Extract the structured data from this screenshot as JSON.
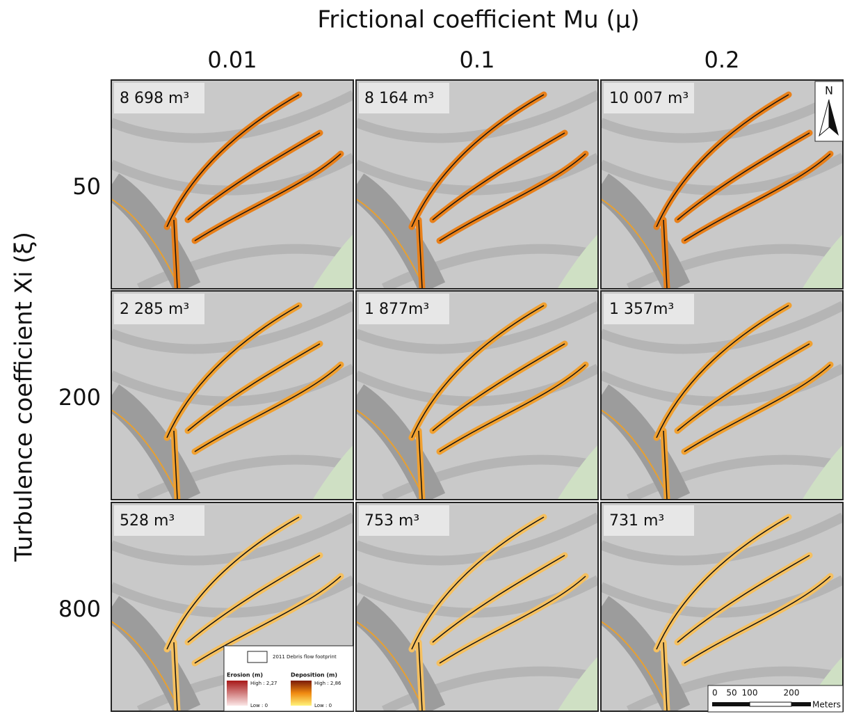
{
  "header": {
    "title": "Frictional coefficient Mu (μ)",
    "columns": [
      "0.01",
      "0.1",
      "0.2"
    ],
    "row_title": "Turbulence coefficient Xi (ξ)",
    "rows": [
      "50",
      "200",
      "800"
    ]
  },
  "panels": [
    [
      "8 698 m³",
      "8 164 m³",
      "10 007 m³"
    ],
    [
      "2 285 m³",
      "1 877m³",
      "1 357m³"
    ],
    [
      "528 m³",
      "753 m³",
      "731 m³"
    ]
  ],
  "legend": {
    "footprint": "2011 Debris flow footprint",
    "erosion": "Erosion (m)",
    "erosion_high": "High : 2,27",
    "erosion_low": "Low : 0",
    "deposition": "Deposition (m)",
    "deposition_high": "High : 2,86",
    "deposition_low": "Low : 0"
  },
  "north_arrow": "N",
  "scale_bar": {
    "ticks": [
      "0",
      "50",
      "100",
      "200"
    ],
    "unit": "Meters"
  }
}
